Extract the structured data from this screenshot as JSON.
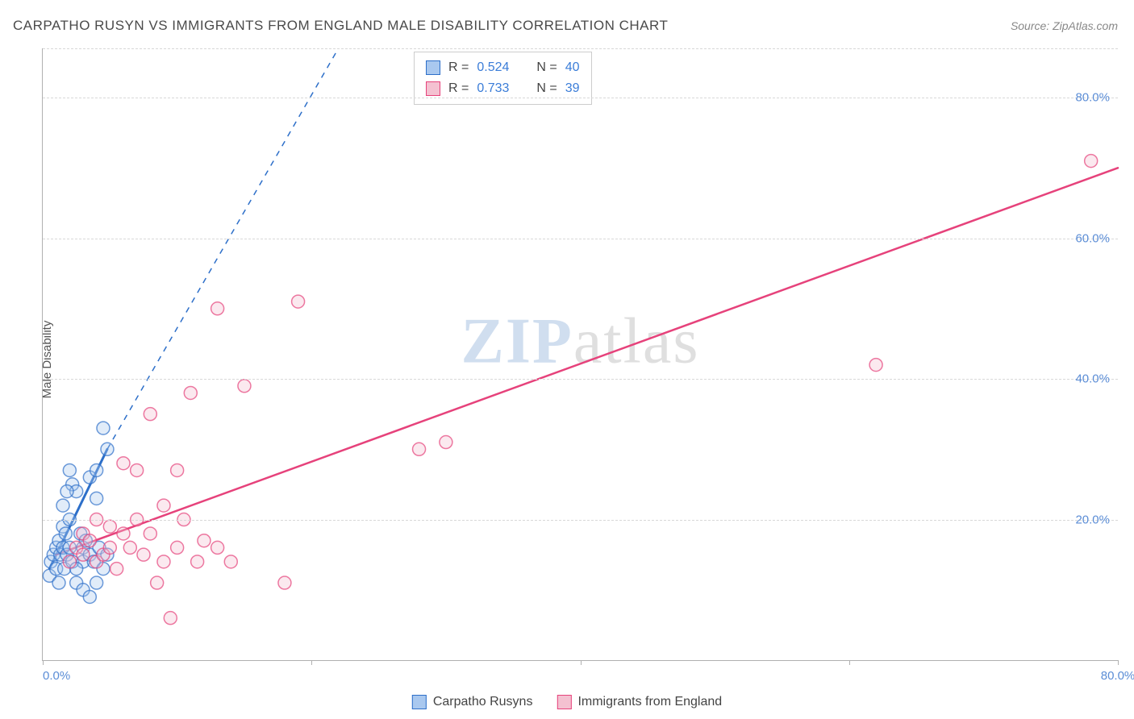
{
  "title": "CARPATHO RUSYN VS IMMIGRANTS FROM ENGLAND MALE DISABILITY CORRELATION CHART",
  "source": "Source: ZipAtlas.com",
  "y_axis_label": "Male Disability",
  "watermark": {
    "zip": "ZIP",
    "atlas": "atlas"
  },
  "chart": {
    "type": "scatter",
    "xlim": [
      0,
      80
    ],
    "ylim": [
      0,
      87
    ],
    "x_ticks": [
      0,
      20,
      40,
      60,
      80
    ],
    "x_tick_labels": [
      "0.0%",
      "",
      "",
      "",
      "80.0%"
    ],
    "y_ticks": [
      20,
      40,
      60,
      80
    ],
    "y_tick_labels": [
      "20.0%",
      "40.0%",
      "60.0%",
      "80.0%"
    ],
    "y_gridlines": [
      20,
      40,
      60,
      80,
      87
    ],
    "background_color": "#ffffff",
    "grid_color": "#d8d8d8",
    "axis_color": "#b0b0b0",
    "marker_radius": 8,
    "marker_fill_opacity": 0.35,
    "marker_stroke_width": 1.5,
    "series": [
      {
        "name": "Carpatho Rusyns",
        "color_fill": "#a9c8ef",
        "color_stroke": "#2d6fc9",
        "trend": {
          "x1": 0.5,
          "y1": 13,
          "x2": 4.8,
          "y2": 30,
          "dash_ext_x": 22,
          "dash_ext_y": 87,
          "width": 3
        },
        "points": [
          [
            0.5,
            12
          ],
          [
            0.6,
            14
          ],
          [
            0.8,
            15
          ],
          [
            1.0,
            13
          ],
          [
            1.0,
            16
          ],
          [
            1.2,
            17
          ],
          [
            1.3,
            15
          ],
          [
            1.5,
            16
          ],
          [
            1.5,
            19
          ],
          [
            1.5,
            22
          ],
          [
            1.6,
            13
          ],
          [
            1.7,
            18
          ],
          [
            1.8,
            15
          ],
          [
            2.0,
            20
          ],
          [
            2.0,
            16
          ],
          [
            2.0,
            27
          ],
          [
            2.2,
            14
          ],
          [
            2.2,
            25
          ],
          [
            2.5,
            24
          ],
          [
            2.5,
            11
          ],
          [
            2.8,
            18
          ],
          [
            3.0,
            14
          ],
          [
            3.0,
            10
          ],
          [
            3.0,
            16
          ],
          [
            3.2,
            17
          ],
          [
            3.5,
            26
          ],
          [
            3.5,
            15
          ],
          [
            3.8,
            14
          ],
          [
            4.0,
            23
          ],
          [
            4.0,
            11
          ],
          [
            4.2,
            16
          ],
          [
            4.5,
            13
          ],
          [
            4.5,
            33
          ],
          [
            4.8,
            15
          ],
          [
            4.8,
            30
          ],
          [
            1.2,
            11
          ],
          [
            1.8,
            24
          ],
          [
            2.5,
            13
          ],
          [
            3.5,
            9
          ],
          [
            4.0,
            27
          ]
        ]
      },
      {
        "name": "Immigrants from England",
        "color_fill": "#f4c1d1",
        "color_stroke": "#e6427b",
        "trend": {
          "x1": 1,
          "y1": 15,
          "x2": 80,
          "y2": 70,
          "width": 2.5
        },
        "points": [
          [
            2,
            14
          ],
          [
            2.5,
            16
          ],
          [
            3,
            15
          ],
          [
            3,
            18
          ],
          [
            3.5,
            17
          ],
          [
            4,
            14
          ],
          [
            4,
            20
          ],
          [
            4.5,
            15
          ],
          [
            5,
            16
          ],
          [
            5,
            19
          ],
          [
            5.5,
            13
          ],
          [
            6,
            28
          ],
          [
            6,
            18
          ],
          [
            6.5,
            16
          ],
          [
            7,
            27
          ],
          [
            7,
            20
          ],
          [
            7.5,
            15
          ],
          [
            8,
            18
          ],
          [
            8,
            35
          ],
          [
            8.5,
            11
          ],
          [
            9,
            22
          ],
          [
            9,
            14
          ],
          [
            10,
            27
          ],
          [
            10,
            16
          ],
          [
            10.5,
            20
          ],
          [
            11,
            38
          ],
          [
            11.5,
            14
          ],
          [
            12,
            17
          ],
          [
            13,
            50
          ],
          [
            13,
            16
          ],
          [
            14,
            14
          ],
          [
            15,
            39
          ],
          [
            18,
            11
          ],
          [
            19,
            51
          ],
          [
            28,
            30
          ],
          [
            30,
            31
          ],
          [
            62,
            42
          ],
          [
            78,
            71
          ],
          [
            9.5,
            6
          ]
        ]
      }
    ]
  },
  "stats_box": {
    "rows": [
      {
        "swatch_fill": "#a9c8ef",
        "swatch_stroke": "#2d6fc9",
        "r_label": "R =",
        "r_value": "0.524",
        "n_label": "N =",
        "n_value": "40"
      },
      {
        "swatch_fill": "#f4c1d1",
        "swatch_stroke": "#e6427b",
        "r_label": "R =",
        "r_value": "0.733",
        "n_label": "N =",
        "n_value": "39"
      }
    ]
  },
  "bottom_legend": [
    {
      "swatch_fill": "#a9c8ef",
      "swatch_stroke": "#2d6fc9",
      "label": "Carpatho Rusyns"
    },
    {
      "swatch_fill": "#f4c1d1",
      "swatch_stroke": "#e6427b",
      "label": "Immigrants from England"
    }
  ]
}
